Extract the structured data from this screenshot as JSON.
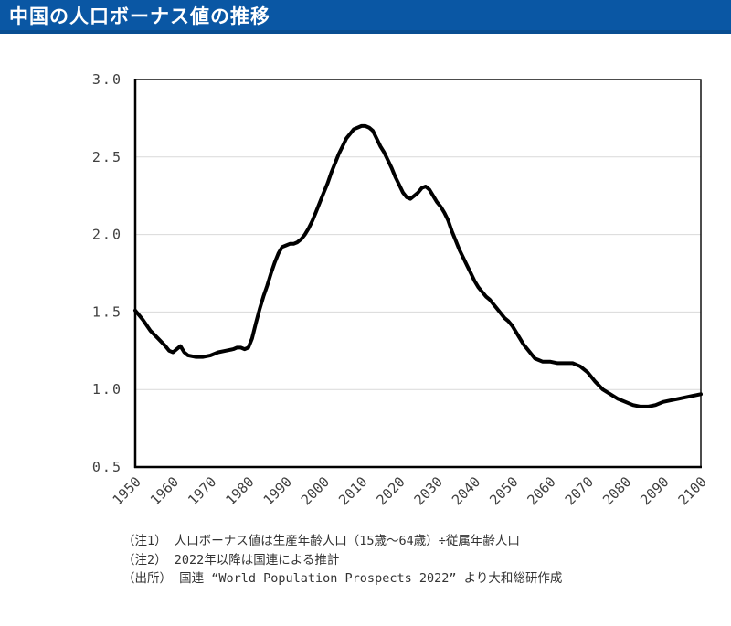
{
  "header": {
    "title": "中国の人口ボーナス値の推移",
    "bg_color": "#0a57a4",
    "accent_color": "#094e92",
    "text_color": "#ffffff"
  },
  "chart_data": {
    "type": "line",
    "title": "中国の人口ボーナス値の推移",
    "xlabel": "",
    "ylabel": "",
    "xlim": [
      1950,
      2100
    ],
    "ylim": [
      0.5,
      3.0
    ],
    "x_ticks": [
      "1950",
      "1960",
      "1970",
      "1980",
      "1990",
      "2000",
      "2010",
      "2020",
      "2030",
      "2040",
      "2050",
      "2060",
      "2070",
      "2080",
      "2090",
      "2100"
    ],
    "y_ticks": [
      "0.5",
      "1.0",
      "1.5",
      "2.0",
      "2.5",
      "3.0"
    ],
    "grid": "horizontal-only",
    "legend": "none",
    "line_color": "#000000",
    "line_width": 4,
    "gridline_color": "#d9d9d9",
    "axis_color": "#000000",
    "tick_label_color": "#404040",
    "series": [
      {
        "name": "人口ボーナス値",
        "points": [
          [
            1950,
            1.51
          ],
          [
            1952,
            1.45
          ],
          [
            1954,
            1.38
          ],
          [
            1956,
            1.33
          ],
          [
            1958,
            1.28
          ],
          [
            1959,
            1.25
          ],
          [
            1960,
            1.24
          ],
          [
            1961,
            1.26
          ],
          [
            1962,
            1.28
          ],
          [
            1963,
            1.24
          ],
          [
            1964,
            1.22
          ],
          [
            1966,
            1.21
          ],
          [
            1968,
            1.21
          ],
          [
            1970,
            1.22
          ],
          [
            1972,
            1.24
          ],
          [
            1974,
            1.25
          ],
          [
            1976,
            1.26
          ],
          [
            1977,
            1.27
          ],
          [
            1978,
            1.27
          ],
          [
            1979,
            1.26
          ],
          [
            1980,
            1.27
          ],
          [
            1981,
            1.33
          ],
          [
            1982,
            1.43
          ],
          [
            1983,
            1.52
          ],
          [
            1984,
            1.6
          ],
          [
            1985,
            1.67
          ],
          [
            1986,
            1.75
          ],
          [
            1987,
            1.82
          ],
          [
            1988,
            1.88
          ],
          [
            1989,
            1.92
          ],
          [
            1990,
            1.93
          ],
          [
            1991,
            1.94
          ],
          [
            1992,
            1.94
          ],
          [
            1993,
            1.95
          ],
          [
            1994,
            1.97
          ],
          [
            1995,
            2.0
          ],
          [
            1996,
            2.04
          ],
          [
            1997,
            2.09
          ],
          [
            1998,
            2.15
          ],
          [
            1999,
            2.21
          ],
          [
            2000,
            2.27
          ],
          [
            2001,
            2.33
          ],
          [
            2002,
            2.4
          ],
          [
            2003,
            2.46
          ],
          [
            2004,
            2.52
          ],
          [
            2005,
            2.57
          ],
          [
            2006,
            2.62
          ],
          [
            2007,
            2.65
          ],
          [
            2008,
            2.68
          ],
          [
            2009,
            2.69
          ],
          [
            2010,
            2.7
          ],
          [
            2011,
            2.7
          ],
          [
            2012,
            2.69
          ],
          [
            2013,
            2.67
          ],
          [
            2014,
            2.62
          ],
          [
            2015,
            2.57
          ],
          [
            2016,
            2.53
          ],
          [
            2017,
            2.48
          ],
          [
            2018,
            2.43
          ],
          [
            2019,
            2.37
          ],
          [
            2020,
            2.32
          ],
          [
            2021,
            2.27
          ],
          [
            2022,
            2.24
          ],
          [
            2023,
            2.23
          ],
          [
            2024,
            2.25
          ],
          [
            2025,
            2.27
          ],
          [
            2026,
            2.3
          ],
          [
            2027,
            2.31
          ],
          [
            2028,
            2.29
          ],
          [
            2029,
            2.25
          ],
          [
            2030,
            2.21
          ],
          [
            2031,
            2.18
          ],
          [
            2032,
            2.14
          ],
          [
            2033,
            2.09
          ],
          [
            2034,
            2.02
          ],
          [
            2035,
            1.96
          ],
          [
            2036,
            1.9
          ],
          [
            2037,
            1.85
          ],
          [
            2038,
            1.8
          ],
          [
            2039,
            1.75
          ],
          [
            2040,
            1.7
          ],
          [
            2041,
            1.66
          ],
          [
            2042,
            1.63
          ],
          [
            2043,
            1.6
          ],
          [
            2044,
            1.58
          ],
          [
            2045,
            1.55
          ],
          [
            2046,
            1.52
          ],
          [
            2047,
            1.49
          ],
          [
            2048,
            1.46
          ],
          [
            2049,
            1.44
          ],
          [
            2050,
            1.41
          ],
          [
            2051,
            1.37
          ],
          [
            2052,
            1.33
          ],
          [
            2053,
            1.29
          ],
          [
            2054,
            1.26
          ],
          [
            2055,
            1.23
          ],
          [
            2056,
            1.2
          ],
          [
            2057,
            1.19
          ],
          [
            2058,
            1.18
          ],
          [
            2060,
            1.18
          ],
          [
            2062,
            1.17
          ],
          [
            2064,
            1.17
          ],
          [
            2066,
            1.17
          ],
          [
            2068,
            1.15
          ],
          [
            2070,
            1.11
          ],
          [
            2072,
            1.05
          ],
          [
            2074,
            1.0
          ],
          [
            2076,
            0.97
          ],
          [
            2078,
            0.94
          ],
          [
            2080,
            0.92
          ],
          [
            2082,
            0.9
          ],
          [
            2084,
            0.89
          ],
          [
            2086,
            0.89
          ],
          [
            2088,
            0.9
          ],
          [
            2090,
            0.92
          ],
          [
            2092,
            0.93
          ],
          [
            2094,
            0.94
          ],
          [
            2096,
            0.95
          ],
          [
            2098,
            0.96
          ],
          [
            2100,
            0.97
          ]
        ]
      }
    ]
  },
  "footnotes": {
    "lines": [
      "（注1） 人口ボーナス値は生産年齢人口（15歳～64歳）÷従属年齢人口",
      "（注2） 2022年以降は国連による推計",
      "（出所） 国連 “World Population Prospects 2022” より大和総研作成"
    ]
  }
}
